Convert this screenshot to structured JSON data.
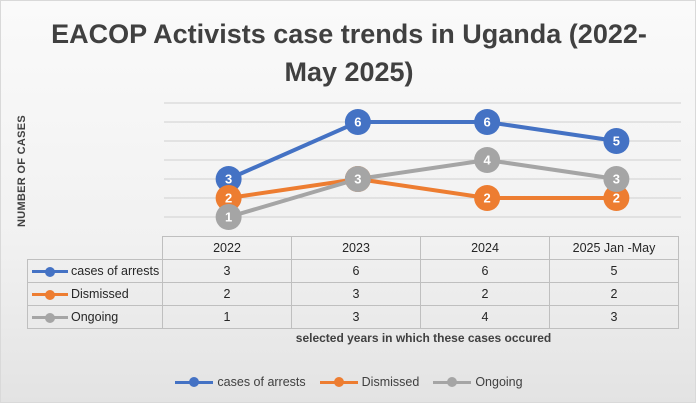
{
  "chart_data": {
    "type": "line",
    "title_line1": "EACOP Activists case trends in Uganda (2022-",
    "title_line2": "May 2025)",
    "ylabel": "NUMBER OF CASES",
    "xlabel": "selected years in which these cases occured",
    "categories": [
      "2022",
      "2023",
      "2024",
      "2025 Jan -May"
    ],
    "ylim": [
      0,
      7
    ],
    "grid": true,
    "data_labels": true,
    "data_table": true,
    "legend_position": "bottom",
    "series": [
      {
        "name": "cases of arrests",
        "values": [
          3,
          6,
          6,
          5
        ],
        "color": "#4472C4"
      },
      {
        "name": "Dismissed",
        "values": [
          2,
          3,
          2,
          2
        ],
        "color": "#ED7D31"
      },
      {
        "name": "Ongoing",
        "values": [
          1,
          3,
          4,
          3
        ],
        "color": "#A5A5A5"
      }
    ]
  }
}
